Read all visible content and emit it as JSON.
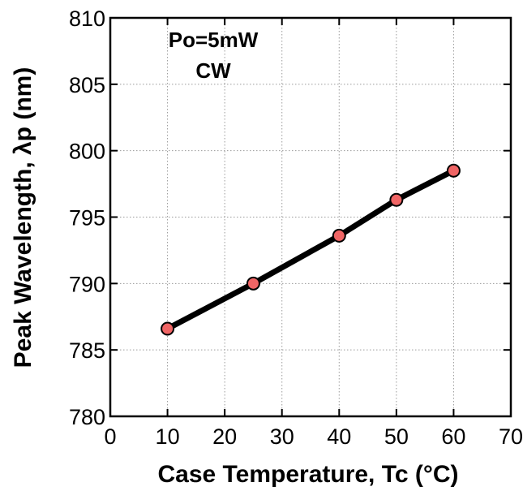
{
  "chart_data": {
    "type": "line",
    "annotations": [
      "Po=5mW",
      "CW"
    ],
    "xlabel": "Case Temperature, Tc (°C)",
    "ylabel": "Peak Wavelength, λp (nm)",
    "xlim": [
      0,
      70
    ],
    "ylim": [
      780,
      810
    ],
    "x_ticks": [
      0,
      10,
      20,
      30,
      40,
      50,
      60,
      70
    ],
    "y_ticks": [
      780,
      785,
      790,
      795,
      800,
      805,
      810
    ],
    "grid": true,
    "series": [
      {
        "x": [
          10,
          25,
          40,
          50,
          60
        ],
        "values": [
          786.6,
          790.0,
          793.6,
          796.3,
          798.5
        ],
        "marker": "circle",
        "marker_color": "#f06565",
        "line_color": "#000000"
      }
    ]
  }
}
